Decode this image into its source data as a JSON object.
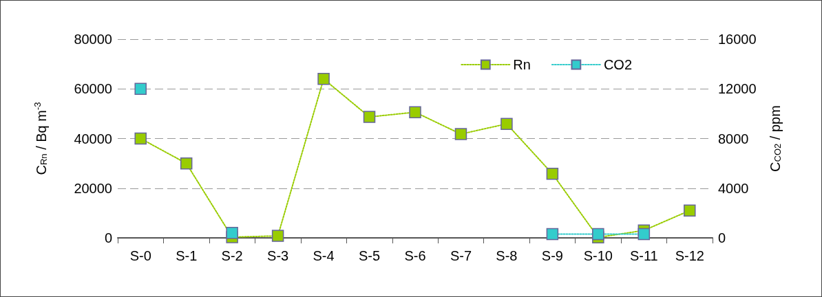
{
  "chart_data": {
    "type": "line",
    "categories": [
      "S-0",
      "S-1",
      "S-2",
      "S-3",
      "S-4",
      "S-5",
      "S-6",
      "S-7",
      "S-8",
      "S-9",
      "S-10",
      "S-11",
      "S-12"
    ],
    "ylabel": "C$_{Rn}$ / Bq m$^{-3}$",
    "y2label": "C$_{CO2}$ / ppm",
    "series": [
      {
        "name": "Rn",
        "color": "#99cc00",
        "values": [
          40000,
          30000,
          300,
          800,
          64000,
          48700,
          50600,
          41800,
          45900,
          25800,
          200,
          3000,
          11000
        ]
      },
      {
        "name": "CO2",
        "color": "#33cccc",
        "axis": "y2",
        "values": [
          12000,
          null,
          400,
          null,
          null,
          null,
          null,
          null,
          null,
          300,
          300,
          300,
          null
        ]
      }
    ],
    "ylim": [
      0,
      80000
    ],
    "yticks": [
      0,
      20000,
      40000,
      60000,
      80000
    ],
    "y2lim": [
      0,
      16000
    ],
    "y2ticks": [
      0,
      4000,
      8000,
      12000,
      16000
    ],
    "grid": "y",
    "legend": "top right",
    "marker": "square",
    "line_style": "dotted"
  }
}
